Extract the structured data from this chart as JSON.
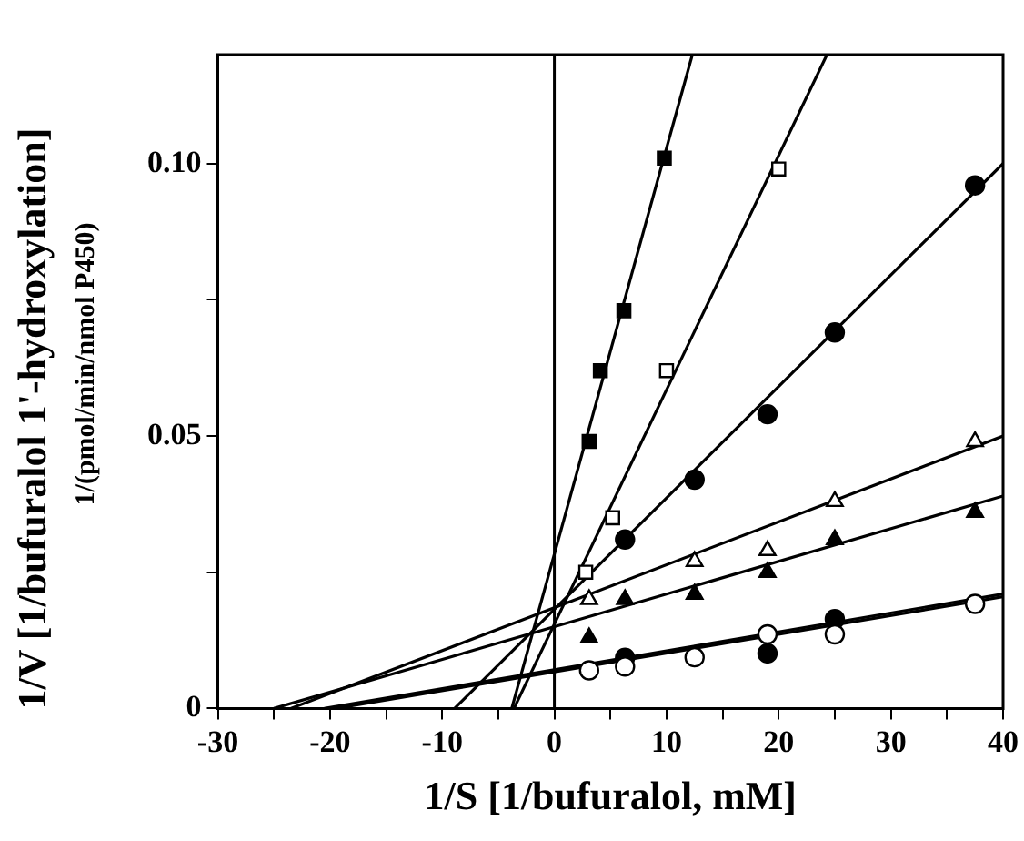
{
  "chart_data": {
    "type": "scatter",
    "xlabel": "1/S [1/bufuralol, mM]",
    "ylabel": "1/V [1/bufuralol 1'-hydroxylation]\n1/(pmol/min/nmol P450)",
    "xlim": [
      -30,
      40
    ],
    "xticks": [
      -30,
      {
        "value": -25,
        "label": null
      },
      -20,
      {
        "value": -15,
        "label": null
      },
      -10,
      {
        "value": -5,
        "label": null
      },
      0,
      {
        "value": 5,
        "label": null
      },
      10,
      {
        "value": 15,
        "label": null
      },
      20,
      {
        "value": 25,
        "label": null
      },
      30,
      {
        "value": 35,
        "label": null
      },
      40
    ],
    "ylim": [
      0,
      0.12
    ],
    "yticks": [
      0,
      {
        "value": 0.025,
        "label": null
      },
      {
        "value": 0.05,
        "label": "0.05"
      },
      {
        "value": 0.075,
        "label": null
      },
      {
        "value": 0.1,
        "label": "0.10"
      }
    ],
    "grid": false,
    "legend": false,
    "ref_lines": [
      {
        "axis": "x",
        "value": 0,
        "color": "#000000",
        "line_style": "solid"
      }
    ],
    "series": [
      {
        "type": "scatter",
        "marker": "square",
        "color": "#000000",
        "x": [
          3.1,
          4.1,
          6.2,
          9.8
        ],
        "values": [
          0.049,
          0.062,
          0.073,
          0.101
        ]
      },
      {
        "type": "scatter",
        "marker": "square",
        "color": "#ffffff",
        "x": [
          2.8,
          5.2,
          10,
          20
        ],
        "values": [
          0.025,
          0.035,
          0.062,
          0.099
        ]
      },
      {
        "type": "scatter",
        "marker": "circle",
        "color": "#000000",
        "x": [
          6.3,
          12.5,
          19,
          25,
          37.5
        ],
        "values": [
          0.031,
          0.042,
          0.054,
          0.069,
          0.096
        ]
      },
      {
        "type": "scatter",
        "marker": "triangle",
        "color": "#ffffff",
        "x": [
          3.1,
          12.5,
          19,
          25,
          37.5
        ],
        "values": [
          0.02,
          0.027,
          0.029,
          0.038,
          0.049
        ]
      },
      {
        "type": "scatter",
        "marker": "triangle",
        "color": "#000000",
        "x": [
          3.1,
          6.3,
          12.5,
          19,
          25,
          37.5
        ],
        "values": [
          0.013,
          0.02,
          0.021,
          0.025,
          0.031,
          0.036
        ]
      },
      {
        "type": "scatter",
        "marker": "circle",
        "color": "#ffffff",
        "x": [
          3.1,
          6.3,
          12.5,
          19,
          25,
          37.5
        ],
        "values": [
          0.007,
          0.0077,
          0.0094,
          0.0136,
          0.0136,
          0.0192
        ]
      },
      {
        "type": "scatter",
        "marker": "circle",
        "color": "#000000",
        "x": [
          6.3,
          19,
          25
        ],
        "values": [
          0.0093,
          0.0101,
          0.0164
        ]
      },
      {
        "type": "line",
        "marker": "none",
        "color": "#000000",
        "x": [
          -3.8,
          12.3
        ],
        "values": [
          0,
          0.12
        ]
      },
      {
        "type": "line",
        "marker": "none",
        "color": "#000000",
        "x": [
          -3.6,
          24.3
        ],
        "values": [
          0,
          0.12
        ]
      },
      {
        "type": "line",
        "marker": "none",
        "color": "#000000",
        "x": [
          -8.9,
          40
        ],
        "values": [
          0,
          0.1
        ]
      },
      {
        "type": "line",
        "marker": "none",
        "color": "#000000",
        "x": [
          -23.5,
          40
        ],
        "values": [
          0,
          0.05
        ]
      },
      {
        "type": "line",
        "marker": "none",
        "color": "#000000",
        "x": [
          -25,
          40
        ],
        "values": [
          0,
          0.039
        ]
      },
      {
        "type": "line",
        "marker": "none",
        "color": "#000000",
        "x": [
          -20.5,
          40
        ],
        "values": [
          0,
          0.021
        ]
      },
      {
        "type": "line",
        "marker": "none",
        "color": "#000000",
        "x": [
          -19.5,
          40
        ],
        "values": [
          0,
          0.0205
        ]
      }
    ]
  }
}
